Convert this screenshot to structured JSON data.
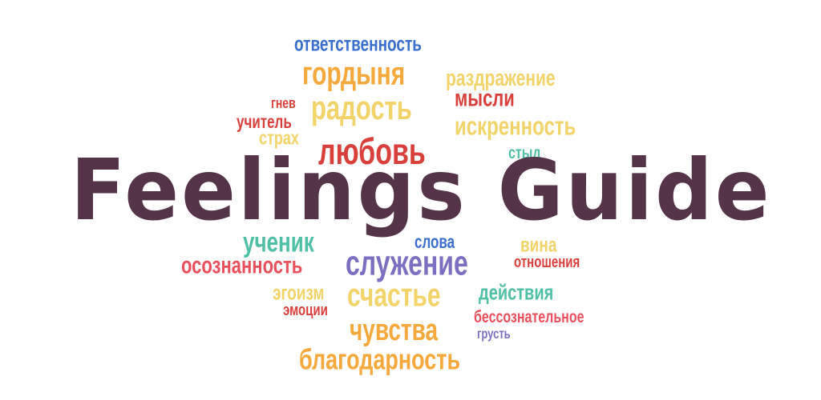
{
  "title": {
    "text": "Feelings Guide",
    "color": "#553449"
  },
  "words": [
    {
      "text": "ответственность",
      "color": "#3a6fd0"
    },
    {
      "text": "гордыня",
      "color": "#f5a83c"
    },
    {
      "text": "раздражение",
      "color": "#f2d46a"
    },
    {
      "text": "мысли",
      "color": "#d9403c"
    },
    {
      "text": "гнев",
      "color": "#d9403c"
    },
    {
      "text": "радость",
      "color": "#f2d46a"
    },
    {
      "text": "учитель",
      "color": "#d9403c"
    },
    {
      "text": "искренность",
      "color": "#f2d46a"
    },
    {
      "text": "страх",
      "color": "#f2d46a"
    },
    {
      "text": "любовь",
      "color": "#d9403c"
    },
    {
      "text": "стыд",
      "color": "#4fbfa5"
    },
    {
      "text": "ученик",
      "color": "#4fbfa5"
    },
    {
      "text": "слова",
      "color": "#3a6fd0"
    },
    {
      "text": "вина",
      "color": "#f2d46a"
    },
    {
      "text": "осознанность",
      "color": "#e8505b"
    },
    {
      "text": "служение",
      "color": "#7a6fc0"
    },
    {
      "text": "отношения",
      "color": "#d9403c"
    },
    {
      "text": "эгоизм",
      "color": "#f2d46a"
    },
    {
      "text": "счастье",
      "color": "#f2d46a"
    },
    {
      "text": "действия",
      "color": "#4fbfa5"
    },
    {
      "text": "эмоции",
      "color": "#d9403c"
    },
    {
      "text": "бессознательное",
      "color": "#e8505b"
    },
    {
      "text": "чувства",
      "color": "#f5a83c"
    },
    {
      "text": "грусть",
      "color": "#7a6fc0"
    },
    {
      "text": "благодарность",
      "color": "#f5a83c"
    }
  ]
}
